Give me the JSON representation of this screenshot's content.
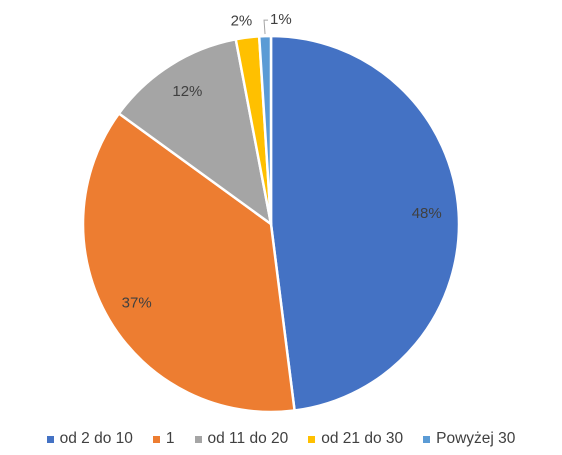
{
  "chart_data": {
    "type": "pie",
    "categories": [
      "od 2 do 10",
      "1",
      "od 11 do 20",
      "od 21 do 30",
      "Powyżej 30"
    ],
    "values": [
      48,
      37,
      12,
      2,
      1
    ],
    "data_labels": [
      "48%",
      "37%",
      "12%",
      "2%",
      "1%"
    ],
    "colors": [
      "#4472C4",
      "#ED7D31",
      "#A5A5A5",
      "#FFC000",
      "#5B9BD5"
    ],
    "start_angle_deg": 0,
    "direction": "clockwise",
    "legend_position": "bottom",
    "title": ""
  }
}
